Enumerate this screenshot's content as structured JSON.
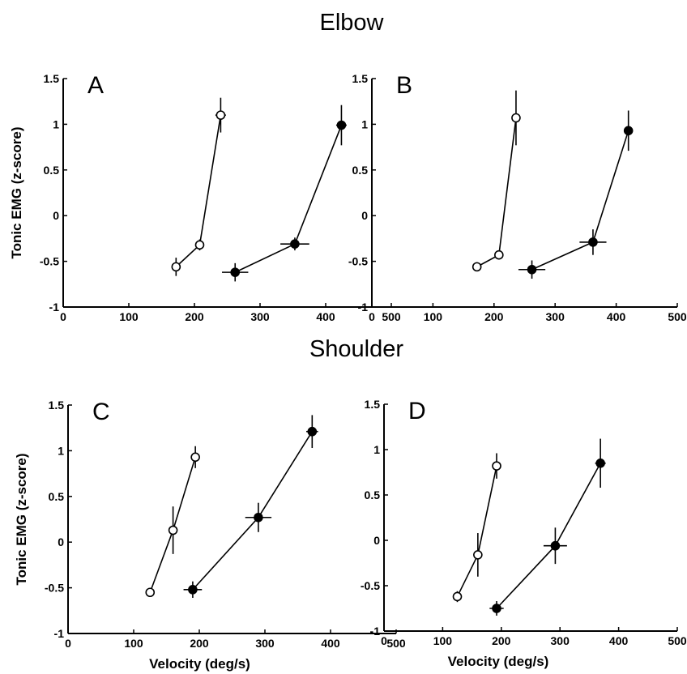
{
  "section_titles": {
    "top": "Elbow",
    "bottom": "Shoulder"
  },
  "styles": {
    "open_marker_fill": "#ffffff",
    "filled_marker_fill": "#000000",
    "line_color": "#000000"
  },
  "chart_data": [
    {
      "type": "line",
      "panel": "A",
      "section": "Elbow",
      "xlabel": "",
      "ylabel": "Tonic EMG (z-score)",
      "xlim": [
        0,
        500
      ],
      "ylim": [
        -1,
        1.5
      ],
      "xticks": [
        "0",
        "100",
        "200",
        "300",
        "400",
        "500"
      ],
      "yticks": [
        "-1",
        "-0.5",
        "0",
        "0.5",
        "1",
        "1.5"
      ],
      "series": [
        {
          "marker": "open",
          "points": [
            {
              "x": 172,
              "y": -0.56,
              "xerr": 6,
              "yerr": 0.1
            },
            {
              "x": 208,
              "y": -0.32,
              "xerr": 5,
              "yerr": 0.06
            },
            {
              "x": 240,
              "y": 1.1,
              "xerr": 8,
              "yerr": 0.19
            }
          ]
        },
        {
          "marker": "filled",
          "points": [
            {
              "x": 262,
              "y": -0.62,
              "xerr": 20,
              "yerr": 0.1
            },
            {
              "x": 353,
              "y": -0.31,
              "xerr": 22,
              "yerr": 0.07
            },
            {
              "x": 424,
              "y": 0.99,
              "xerr": 8,
              "yerr": 0.22
            }
          ]
        }
      ]
    },
    {
      "type": "line",
      "panel": "B",
      "section": "Elbow",
      "xlabel": "",
      "ylabel": "",
      "xlim": [
        0,
        500
      ],
      "ylim": [
        -1,
        1.5
      ],
      "xticks": [
        "0",
        "100",
        "200",
        "300",
        "400",
        "500"
      ],
      "yticks": [
        "-1",
        "-0.5",
        "0",
        "0.5",
        "1",
        "1.5"
      ],
      "series": [
        {
          "marker": "open",
          "points": [
            {
              "x": 172,
              "y": -0.56,
              "xerr": 7,
              "yerr": 0.05
            },
            {
              "x": 208,
              "y": -0.43,
              "xerr": 5,
              "yerr": 0.05
            },
            {
              "x": 236,
              "y": 1.07,
              "xerr": 5,
              "yerr": 0.3
            }
          ]
        },
        {
          "marker": "filled",
          "points": [
            {
              "x": 262,
              "y": -0.59,
              "xerr": 22,
              "yerr": 0.1
            },
            {
              "x": 362,
              "y": -0.29,
              "xerr": 22,
              "yerr": 0.14
            },
            {
              "x": 420,
              "y": 0.93,
              "xerr": 6,
              "yerr": 0.22
            }
          ]
        }
      ]
    },
    {
      "type": "line",
      "panel": "C",
      "section": "Shoulder",
      "xlabel": "Velocity (deg/s)",
      "ylabel": "Tonic EMG (z-score)",
      "xlim": [
        0,
        500
      ],
      "ylim": [
        -1,
        1.5
      ],
      "xticks": [
        "0",
        "100",
        "200",
        "300",
        "400",
        "500"
      ],
      "yticks": [
        "-1",
        "-0.5",
        "0",
        "0.5",
        "1",
        "1.5"
      ],
      "series": [
        {
          "marker": "open",
          "points": [
            {
              "x": 125,
              "y": -0.55,
              "xerr": 4,
              "yerr": 0.04
            },
            {
              "x": 160,
              "y": 0.13,
              "xerr": 6,
              "yerr": 0.26
            },
            {
              "x": 194,
              "y": 0.93,
              "xerr": 5,
              "yerr": 0.12
            }
          ]
        },
        {
          "marker": "filled",
          "points": [
            {
              "x": 190,
              "y": -0.52,
              "xerr": 14,
              "yerr": 0.09
            },
            {
              "x": 290,
              "y": 0.27,
              "xerr": 20,
              "yerr": 0.16
            },
            {
              "x": 372,
              "y": 1.21,
              "xerr": 9,
              "yerr": 0.18
            }
          ]
        }
      ]
    },
    {
      "type": "line",
      "panel": "D",
      "section": "Shoulder",
      "xlabel": "Velocity (deg/s)",
      "ylabel": "",
      "xlim": [
        0,
        500
      ],
      "ylim": [
        -1,
        1.5
      ],
      "xticks": [
        "0",
        "100",
        "200",
        "300",
        "400",
        "500"
      ],
      "yticks": [
        "-1",
        "-0.5",
        "0",
        "0.5",
        "1",
        "1.5"
      ],
      "series": [
        {
          "marker": "open",
          "points": [
            {
              "x": 125,
              "y": -0.62,
              "xerr": 4,
              "yerr": 0.06
            },
            {
              "x": 160,
              "y": -0.16,
              "xerr": 5,
              "yerr": 0.24
            },
            {
              "x": 192,
              "y": 0.82,
              "xerr": 6,
              "yerr": 0.14
            }
          ]
        },
        {
          "marker": "filled",
          "points": [
            {
              "x": 192,
              "y": -0.75,
              "xerr": 12,
              "yerr": 0.08
            },
            {
              "x": 292,
              "y": -0.06,
              "xerr": 20,
              "yerr": 0.2
            },
            {
              "x": 369,
              "y": 0.85,
              "xerr": 9,
              "yerr": 0.27
            }
          ]
        }
      ]
    }
  ]
}
